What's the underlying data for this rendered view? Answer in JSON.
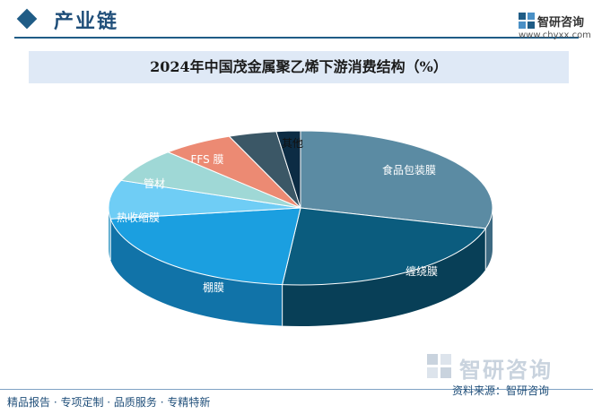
{
  "header": {
    "section_title": "产业链",
    "brand_name": "智研咨询",
    "brand_url": "www.chyxx.com"
  },
  "watermark": {
    "brand_name": "智研咨询"
  },
  "chart_data": {
    "type": "pie",
    "title": "2024年中国茂金属聚乙烯下游消费结构（%）",
    "slices": [
      {
        "label": "食品包装膜",
        "value": 29,
        "color": "#5b8ba3",
        "side_color": "#3d6a82"
      },
      {
        "label": "缠绕膜",
        "value": 22,
        "color": "#0b5c7e",
        "side_color": "#083f57"
      },
      {
        "label": "棚膜",
        "value": 21,
        "color": "#1b9fe0",
        "side_color": "#1173a8"
      },
      {
        "label": "热收缩膜",
        "value": 8,
        "color": "#6fcdf5",
        "side_color": "#4aa2c9"
      },
      {
        "label": "管材",
        "value": 7,
        "color": "#9fd8d6",
        "side_color": "#78b0ae"
      },
      {
        "label": "FFS 膜",
        "value": 6,
        "color": "#ec8a73",
        "side_color": "#c0654f"
      },
      {
        "label": "其他",
        "value": 4,
        "color": "#3b5766",
        "side_color": "#253a46"
      },
      {
        "label": "",
        "value": 2,
        "color": "#0c2c44",
        "side_color": "#071c2c"
      }
    ]
  },
  "footer": {
    "tagline": "精品报告 · 专项定制 · 品质服务 · 专精特新",
    "source": "资料来源：智研咨询"
  }
}
